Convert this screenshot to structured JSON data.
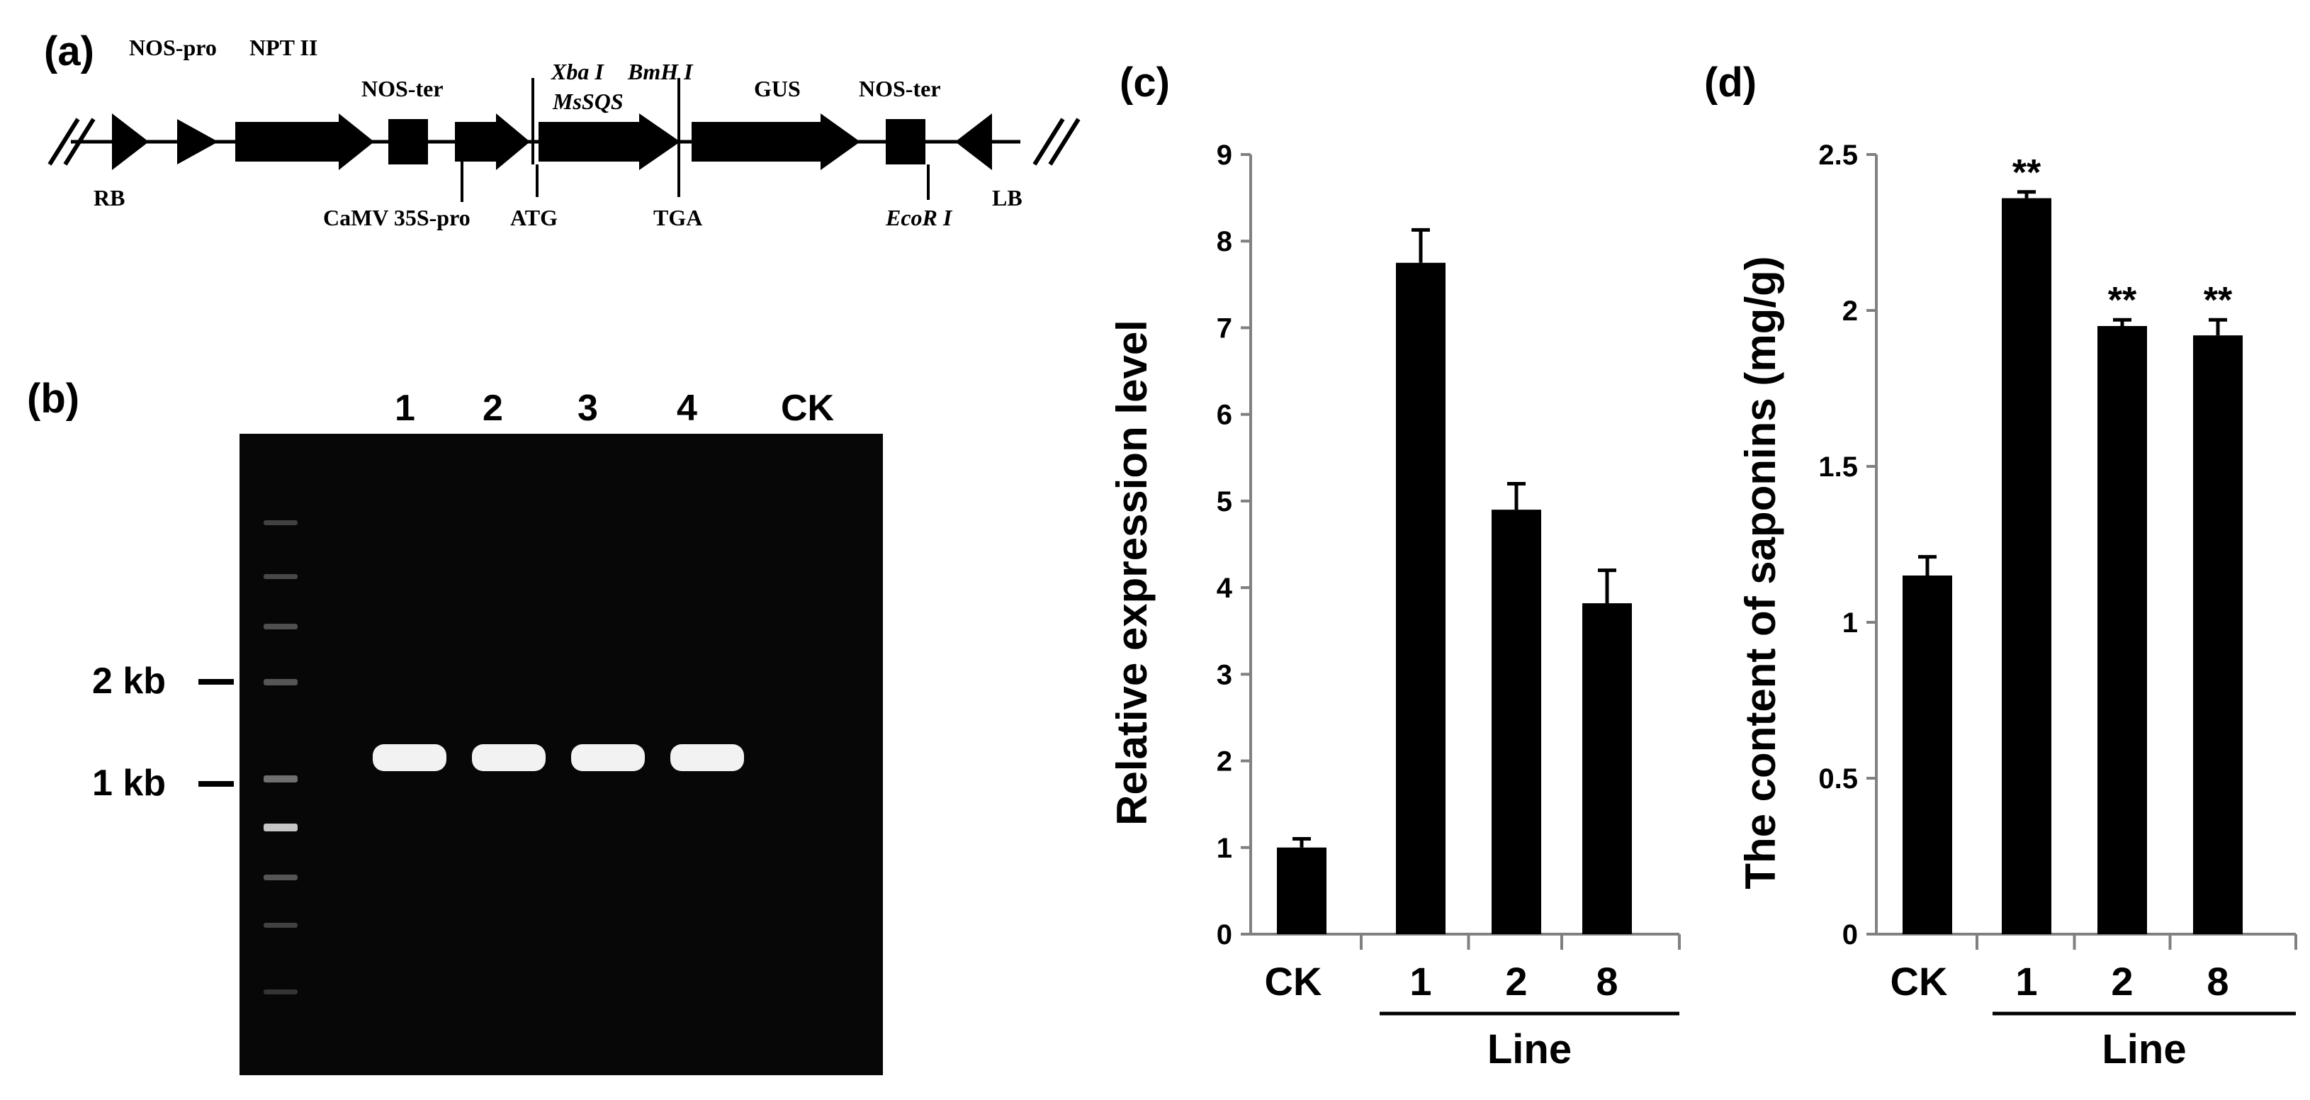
{
  "panels": {
    "a": {
      "label": "(a)"
    },
    "b": {
      "label": "(b)"
    },
    "c": {
      "label": "(c)"
    },
    "d": {
      "label": "(d)"
    }
  },
  "construct": {
    "top_labels": [
      "NOS-pro",
      "NPT II",
      "NOS-ter",
      "Xba I",
      "BmH I",
      "MsSQS",
      "GUS",
      "NOS-ter"
    ],
    "bottom_labels": [
      "RB",
      "CaMV 35S-pro",
      "ATG",
      "TGA",
      "EcoR I",
      "LB"
    ]
  },
  "gel": {
    "lanes": [
      "1",
      "2",
      "3",
      "4",
      "CK"
    ],
    "markers": [
      "2 kb",
      "1 kb"
    ]
  },
  "chart_data": [
    {
      "type": "bar",
      "panel": "c",
      "categories": [
        "CK",
        "1",
        "2",
        "8"
      ],
      "values": [
        1.0,
        7.75,
        4.9,
        3.82
      ],
      "errors": [
        0.1,
        0.38,
        0.3,
        0.38
      ],
      "ylabel": "Relative expression level",
      "xlabel": "Line",
      "ylim": [
        0,
        9
      ],
      "yticks": [
        "0",
        "1",
        "2",
        "3",
        "4",
        "5",
        "6",
        "7",
        "8",
        "9"
      ],
      "significance": [
        "",
        "",
        "",
        ""
      ]
    },
    {
      "type": "bar",
      "panel": "d",
      "categories": [
        "CK",
        "1",
        "2",
        "8"
      ],
      "values": [
        1.15,
        2.36,
        1.95,
        1.92
      ],
      "errors": [
        0.06,
        0.02,
        0.02,
        0.05
      ],
      "ylabel": "The content of saponins (mg/g)",
      "xlabel": "Line",
      "ylim": [
        0,
        2.5
      ],
      "yticks": [
        "0",
        "0.5",
        "1",
        "1.5",
        "2",
        "2.5"
      ],
      "significance": [
        "",
        "**",
        "**",
        "**"
      ]
    }
  ]
}
